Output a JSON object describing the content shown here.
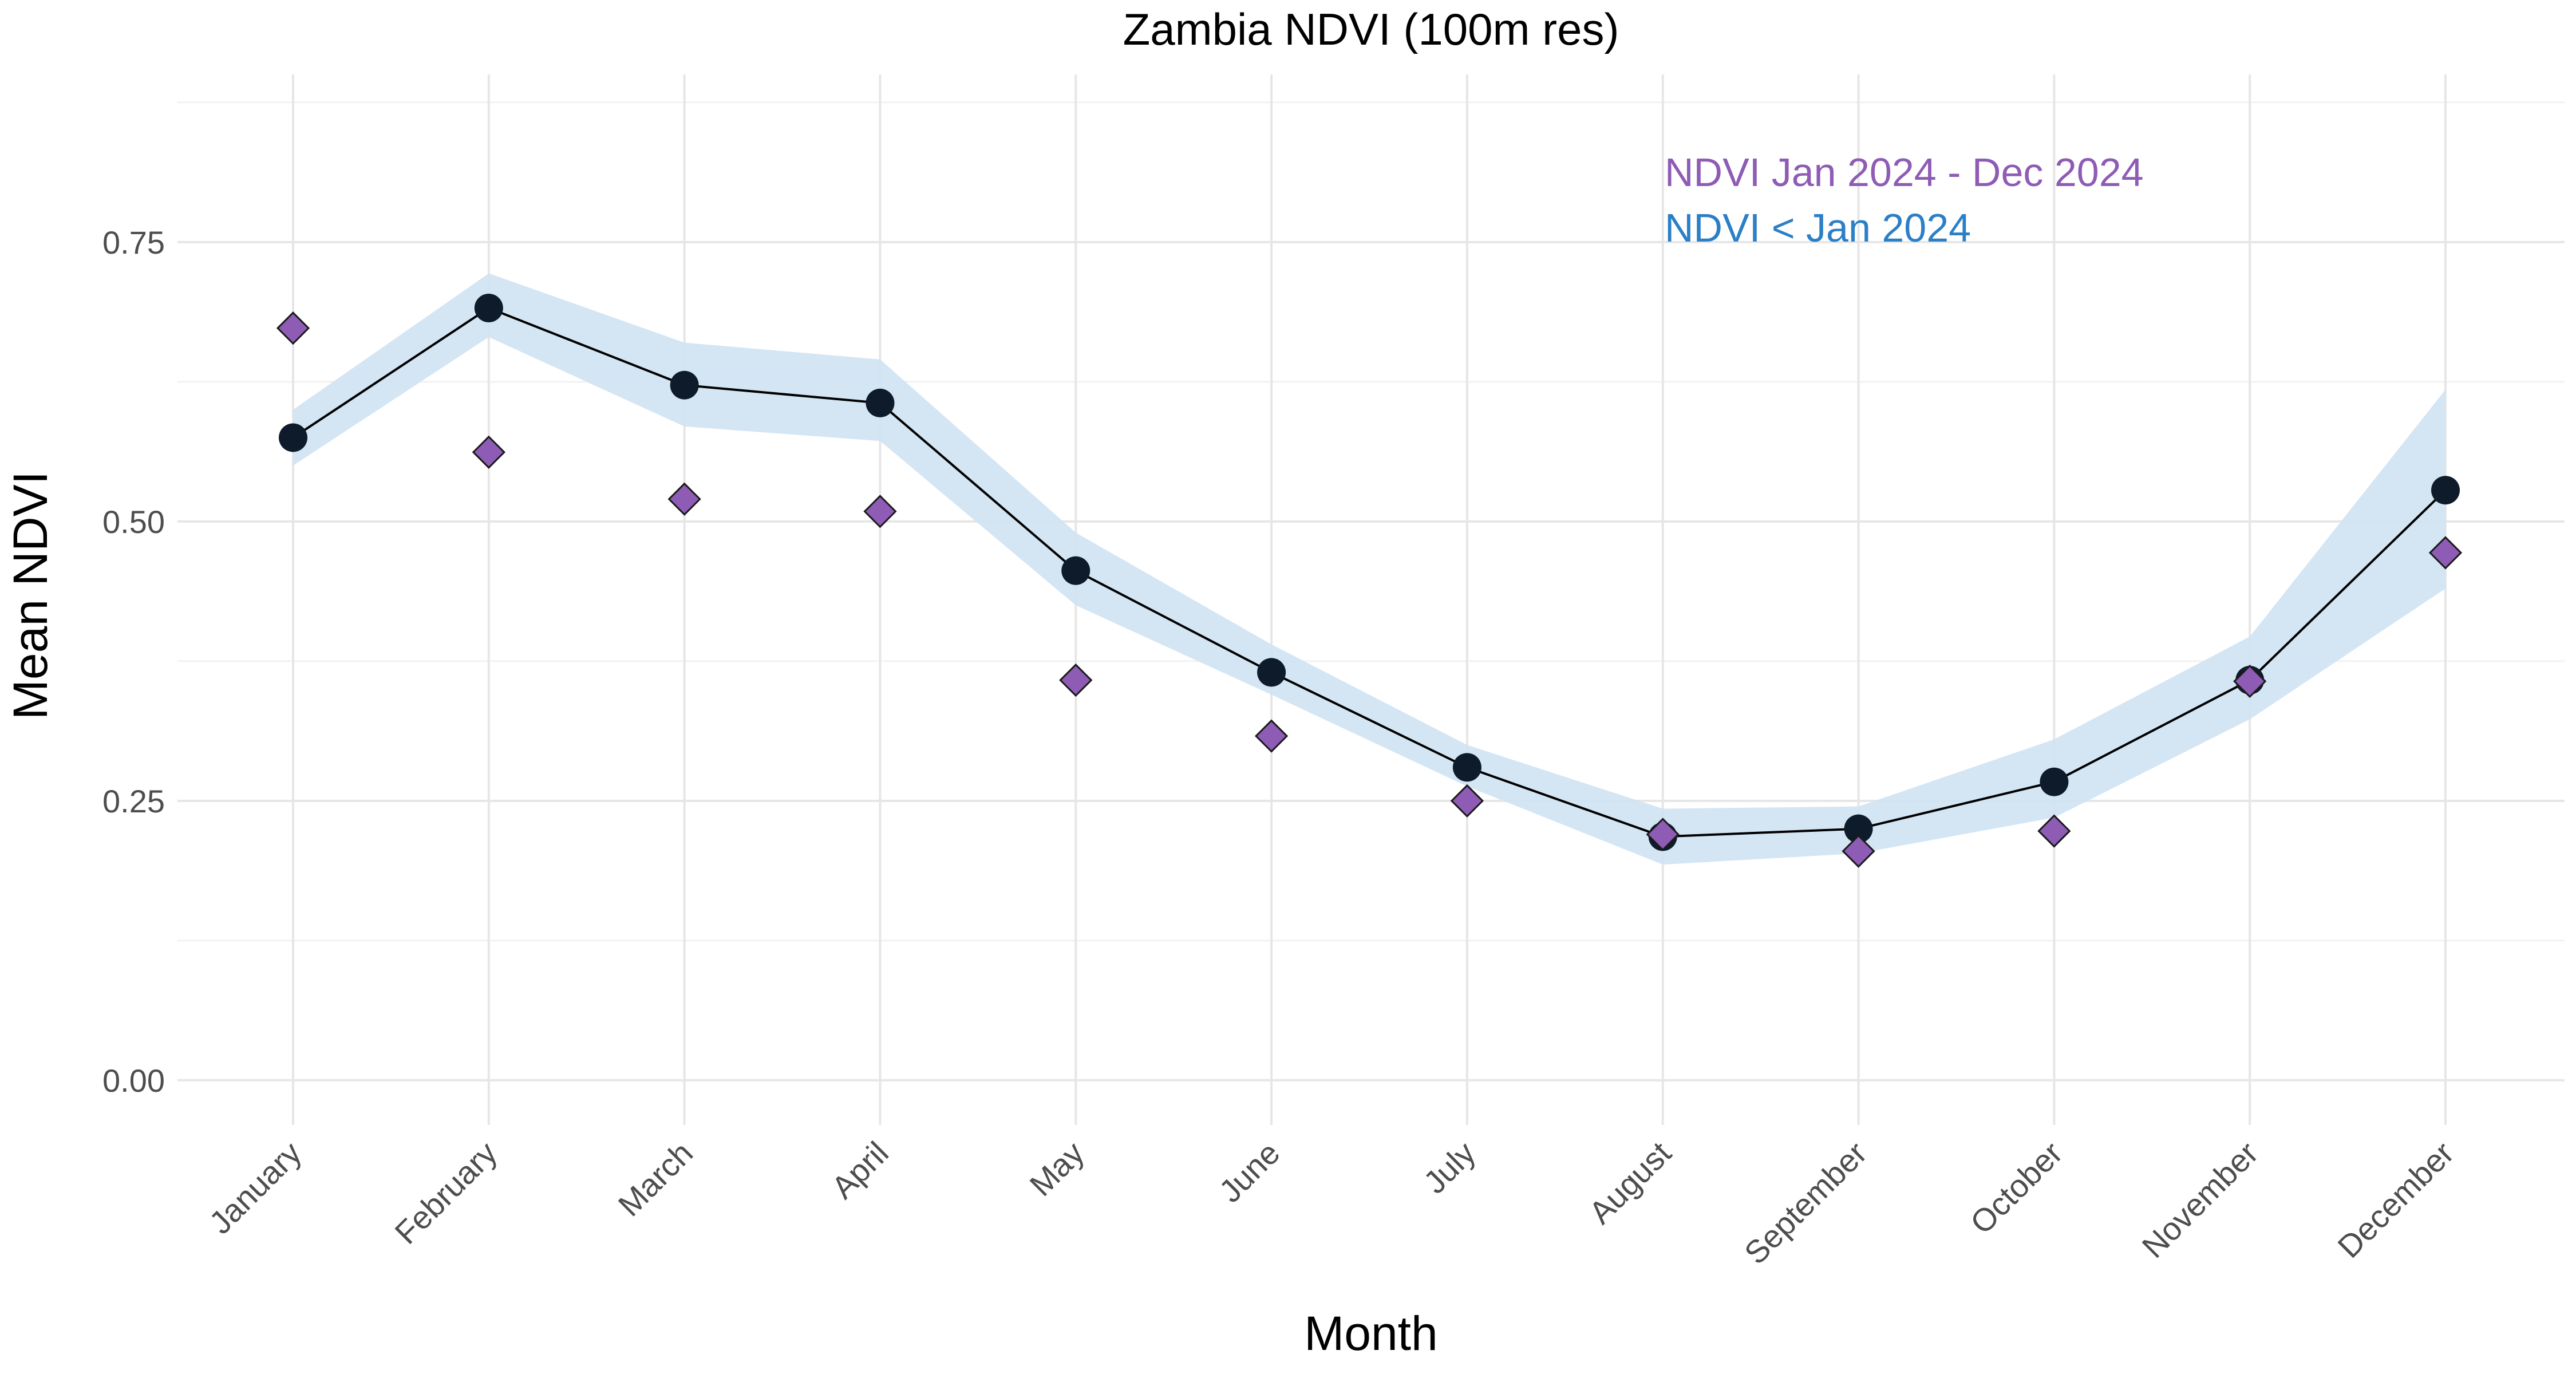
{
  "chart_data": {
    "type": "line",
    "title": "Zambia NDVI (100m res)",
    "xlabel": "Month",
    "ylabel": "Mean NDVI",
    "categories": [
      "January",
      "February",
      "March",
      "April",
      "May",
      "June",
      "July",
      "August",
      "September",
      "October",
      "November",
      "December"
    ],
    "ylim": [
      -0.04,
      0.9
    ],
    "yticks": [
      0.0,
      0.25,
      0.5,
      0.75
    ],
    "ytick_labels": [
      "0.00",
      "0.25",
      "0.50",
      "0.75"
    ],
    "grid": true,
    "legend_placement": "top-right",
    "band": {
      "lower": [
        0.55,
        0.665,
        0.585,
        0.572,
        0.425,
        0.345,
        0.263,
        0.193,
        0.203,
        0.235,
        0.323,
        0.44
      ],
      "upper": [
        0.6,
        0.722,
        0.66,
        0.645,
        0.49,
        0.39,
        0.3,
        0.243,
        0.245,
        0.305,
        0.397,
        0.618
      ],
      "color": "#cfe2f3"
    },
    "series": [
      {
        "name": "NDVI < Jan 2024",
        "values": [
          0.575,
          0.691,
          0.622,
          0.606,
          0.456,
          0.365,
          0.28,
          0.218,
          0.225,
          0.267,
          0.358,
          0.528
        ],
        "color": "#0d1b2a",
        "line_color": "#000000",
        "marker": "circle",
        "label_color": "#2b7fc7"
      },
      {
        "name": "NDVI Jan 2024 - Dec 2024",
        "values": [
          0.673,
          0.562,
          0.52,
          0.509,
          0.358,
          0.308,
          0.25,
          0.22,
          0.205,
          0.223,
          0.357,
          0.472
        ],
        "color": "#8e5bb5",
        "marker": "diamond",
        "label_color": "#8e5bb5"
      }
    ]
  }
}
